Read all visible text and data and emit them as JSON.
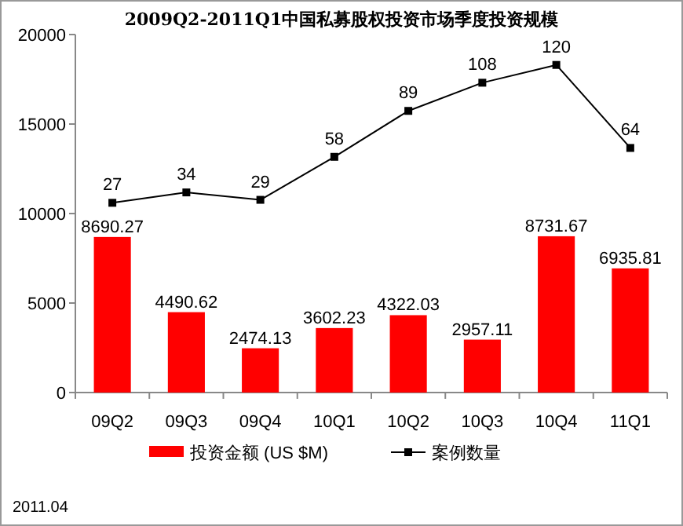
{
  "chart_data": {
    "type": "bar",
    "title": "2009Q2-2011Q1中国私募股权投资市场季度投资规模",
    "categories": [
      "09Q2",
      "09Q3",
      "09Q4",
      "10Q1",
      "10Q2",
      "10Q3",
      "10Q4",
      "11Q1"
    ],
    "series": [
      {
        "name": "投资金额 (US $M)",
        "color": "#ff0000",
        "values": [
          8690.27,
          4490.62,
          2474.13,
          3602.23,
          4322.03,
          2957.11,
          8731.67,
          6935.81
        ]
      },
      {
        "name": "案例数量",
        "type": "line",
        "color": "#000000",
        "axis": "y2",
        "marker": "square",
        "values": [
          27,
          34,
          29,
          58,
          89,
          108,
          120,
          64
        ]
      }
    ],
    "ylim": [
      0,
      20000
    ],
    "yticks": [
      0,
      5000,
      10000,
      15000,
      20000
    ],
    "y2lim": [
      -101,
      140.5
    ],
    "data_labels": true,
    "legend": "bottom",
    "annotations": [
      "2011.04"
    ]
  }
}
